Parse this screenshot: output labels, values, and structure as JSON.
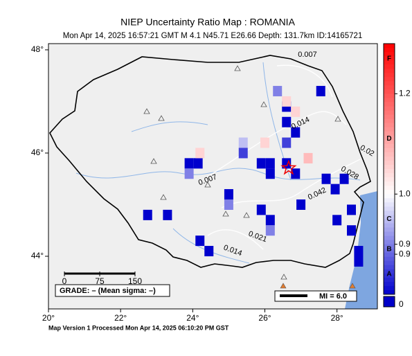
{
  "title": "NIEP Uncertainty Ratio Map : ROMANIA",
  "subtitle": "Mon Apr 14, 2025 16:57:21 GMT   M 4.1   N45.71 E26.66   Depth: 131.7km   ID:14165721",
  "map": {
    "lonlim": [
      20,
      29.12
    ],
    "latlim": [
      42.98,
      48.12
    ],
    "lonticks": [
      {
        "value": 20,
        "label": "20°"
      },
      {
        "value": 22,
        "label": "22°"
      },
      {
        "value": 24,
        "label": "24°"
      },
      {
        "value": 26,
        "label": "26°"
      },
      {
        "value": 28,
        "label": "28°"
      }
    ],
    "latticks": [
      {
        "value": 48,
        "label": "48°"
      },
      {
        "value": 46,
        "label": "46°"
      },
      {
        "value": 44,
        "label": "44°"
      }
    ],
    "epicenter": {
      "lon": 26.66,
      "lat": 45.71
    },
    "cells": [
      {
        "lon": 26.35,
        "lat": 47.2,
        "value": 0.9
      },
      {
        "lon": 26.6,
        "lat": 46.9,
        "value": 0.5
      },
      {
        "lon": 27.55,
        "lat": 47.2,
        "value": 0.6
      },
      {
        "lon": 26.6,
        "lat": 46.6,
        "value": 0.7
      },
      {
        "lon": 26.85,
        "lat": 46.4,
        "value": 0.6
      },
      {
        "lon": 26.6,
        "lat": 46.2,
        "value": 0.85
      },
      {
        "lon": 25.4,
        "lat": 46.2,
        "value": 0.95
      },
      {
        "lon": 25.4,
        "lat": 46.0,
        "value": 0.85
      },
      {
        "lon": 23.9,
        "lat": 45.8,
        "value": 0.5
      },
      {
        "lon": 24.15,
        "lat": 45.8,
        "value": 0.5
      },
      {
        "lon": 23.9,
        "lat": 45.6,
        "value": 0.9
      },
      {
        "lon": 25.9,
        "lat": 45.8,
        "value": 0.4
      },
      {
        "lon": 26.15,
        "lat": 45.8,
        "value": 0.5
      },
      {
        "lon": 26.15,
        "lat": 45.6,
        "value": 0.6
      },
      {
        "lon": 26.6,
        "lat": 45.8,
        "value": 0.4
      },
      {
        "lon": 26.85,
        "lat": 45.6,
        "value": 0.5
      },
      {
        "lon": 27.7,
        "lat": 45.5,
        "value": 0.5
      },
      {
        "lon": 27.95,
        "lat": 45.3,
        "value": 0.6
      },
      {
        "lon": 28.2,
        "lat": 45.5,
        "value": 0.7
      },
      {
        "lon": 25.0,
        "lat": 45.2,
        "value": 0.8
      },
      {
        "lon": 25.0,
        "lat": 45.0,
        "value": 0.9
      },
      {
        "lon": 25.9,
        "lat": 44.9,
        "value": 0.5
      },
      {
        "lon": 26.15,
        "lat": 44.7,
        "value": 0.7
      },
      {
        "lon": 26.15,
        "lat": 44.5,
        "value": 0.9
      },
      {
        "lon": 27.0,
        "lat": 45.0,
        "value": 0.5
      },
      {
        "lon": 22.75,
        "lat": 44.8,
        "value": 0.7
      },
      {
        "lon": 23.3,
        "lat": 44.8,
        "value": 0.6
      },
      {
        "lon": 24.2,
        "lat": 44.3,
        "value": 0.5
      },
      {
        "lon": 24.45,
        "lat": 44.1,
        "value": 0.8
      },
      {
        "lon": 28.0,
        "lat": 44.7,
        "value": 0.7
      },
      {
        "lon": 28.4,
        "lat": 44.5,
        "value": 0.5
      },
      {
        "lon": 28.6,
        "lat": 44.1,
        "value": 0.6
      },
      {
        "lon": 28.6,
        "lat": 43.9,
        "value": 0.5
      },
      {
        "lon": 28.4,
        "lat": 44.9,
        "value": 0.8
      },
      {
        "lon": 26.6,
        "lat": 47.0,
        "value": 1.05
      },
      {
        "lon": 26.85,
        "lat": 46.8,
        "value": 1.05
      },
      {
        "lon": 24.2,
        "lat": 46.0,
        "value": 1.05
      },
      {
        "lon": 27.2,
        "lat": 45.9,
        "value": 1.08
      },
      {
        "lon": 26.0,
        "lat": 46.2,
        "value": 1.05
      }
    ],
    "contour_labels": [
      "0.007",
      "0.014",
      "0.02",
      "0.028",
      "0.042",
      "0.007",
      "0.021",
      "0.014"
    ]
  },
  "colorbar": {
    "lim": [
      0.8,
      1.3
    ],
    "ticks": [
      {
        "value": 1.2,
        "label": "1.2"
      },
      {
        "value": 1,
        "label": "1.0"
      },
      0.9,
      {
        "value": 0.88,
        "label": "0.9"
      }
    ],
    "grades": [
      {
        "value": 1.27,
        "label": "F"
      },
      {
        "value": 1.11,
        "label": "D"
      },
      {
        "value": 0.95,
        "label": "C"
      },
      {
        "value": 0.89,
        "label": "B"
      },
      {
        "value": 0.84,
        "label": "A"
      }
    ],
    "zero": 0
  },
  "scale_bar": [
    0,
    75,
    150
  ],
  "grade_text": "GRADE: – (Mean sigma: –)",
  "mi_text": "MI = 6.0",
  "footer": "Map Version 1 Processed Mon Apr 14, 2025 06:10:20 PM GST"
}
